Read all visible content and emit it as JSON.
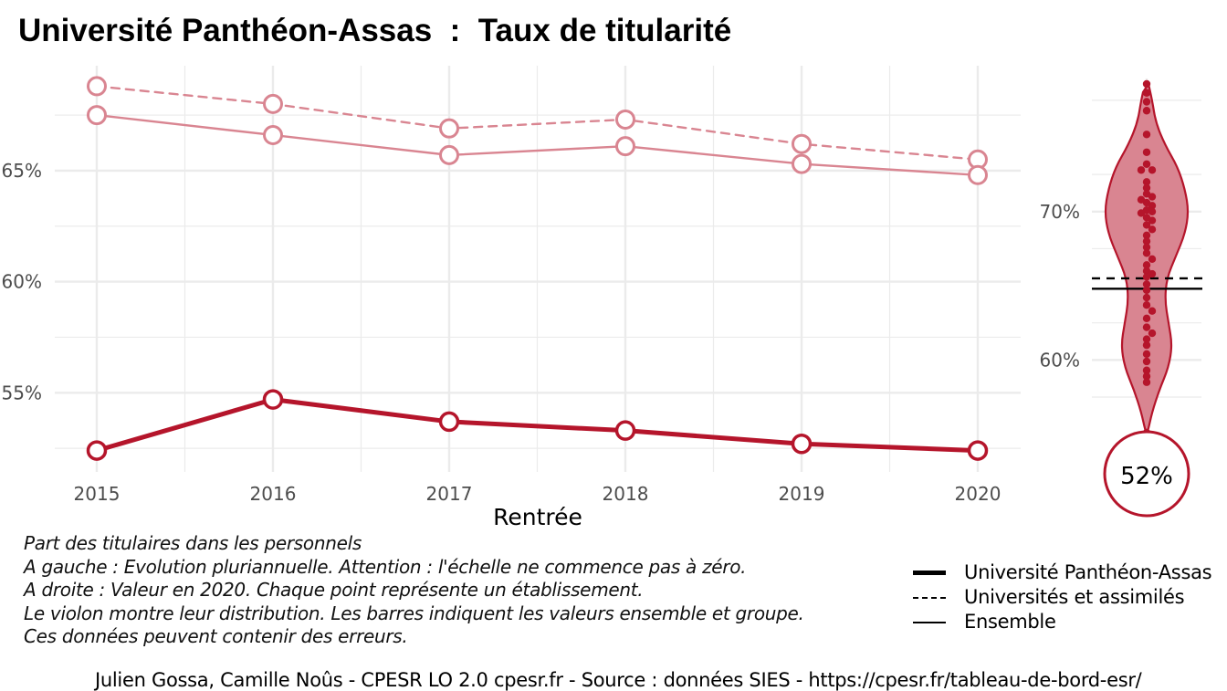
{
  "title": "Université Panthéon-Assas  :  Taux de titularité",
  "chart_data": [
    {
      "type": "line",
      "title": "Université Panthéon-Assas  :  Taux de titularité",
      "xlabel": "Rentrée",
      "ylabel": "",
      "x": [
        2015,
        2016,
        2017,
        2018,
        2019,
        2020
      ],
      "x_tick_labels": [
        "2015",
        "2016",
        "2017",
        "2018",
        "2019",
        "2020"
      ],
      "y_ticks": [
        55,
        60,
        65
      ],
      "y_tick_labels": [
        "55%",
        "60%",
        "65%"
      ],
      "ylim": [
        52.3,
        68.9
      ],
      "grid": true,
      "series": [
        {
          "name": "Université Panthéon-Assas",
          "style": "solid-bold",
          "color": "#b5152b",
          "values": [
            52.4,
            54.7,
            53.7,
            53.3,
            52.7,
            52.4
          ]
        },
        {
          "name": "Universités et assimilés",
          "style": "dashed",
          "color": "#d98591",
          "values": [
            68.8,
            68.0,
            66.9,
            67.3,
            66.2,
            65.5
          ]
        },
        {
          "name": "Ensemble",
          "style": "solid",
          "color": "#d98591",
          "values": [
            67.5,
            66.6,
            65.7,
            66.1,
            65.3,
            64.8
          ]
        }
      ]
    },
    {
      "type": "violin",
      "y_ticks": [
        60,
        70
      ],
      "y_tick_labels": [
        "60%",
        "70%"
      ],
      "ylim": [
        55.1,
        78.6
      ],
      "value_label": "52%",
      "value": 52,
      "reference_lines": [
        {
          "name": "Universités et assimilés",
          "style": "dashed",
          "value": 65.5
        },
        {
          "name": "Ensemble",
          "style": "solid",
          "value": 64.8
        }
      ],
      "points": [
        78.6,
        78.0,
        77.4,
        76.8,
        75.2,
        74.0,
        73.2,
        72.8,
        72.8,
        72.0,
        71.6,
        71.2,
        71.0,
        70.8,
        70.6,
        70.4,
        70.1,
        70.0,
        69.9,
        69.6,
        69.4,
        69.1,
        68.8,
        68.4,
        68.0,
        67.6,
        67.2,
        66.8,
        66.4,
        66.0,
        65.8,
        65.6,
        65.1,
        64.7,
        64.2,
        63.7,
        63.3,
        62.8,
        62.2,
        61.8,
        61.4,
        61.0,
        60.4,
        59.9,
        59.3,
        58.9,
        58.5,
        55.1
      ]
    }
  ],
  "caption": [
    "Part des titulaires dans les personnels",
    "A gauche : Evolution pluriannuelle. Attention : l'échelle ne commence pas à zéro.",
    "A droite : Valeur en 2020. Chaque point représente un établissement.",
    "Le violon montre leur distribution. Les barres indiquent les valeurs ensemble et groupe.",
    "Ces données peuvent contenir des erreurs."
  ],
  "legend": [
    {
      "label": "Université Panthéon-Assas",
      "style": "solid-bold"
    },
    {
      "label": "Universités et assimilés",
      "style": "dashed"
    },
    {
      "label": "Ensemble",
      "style": "solid"
    }
  ],
  "footer": "Julien Gossa, Camille Noûs - CPESR LO 2.0 cpesr.fr - Source : données SIES - https://cpesr.fr/tableau-de-bord-esr/",
  "colors": {
    "accent": "#b5152b",
    "light": "#d98591",
    "violin_fill": "#d98591",
    "grid": "#ebebeb",
    "axis_text": "#4d4d4d"
  }
}
